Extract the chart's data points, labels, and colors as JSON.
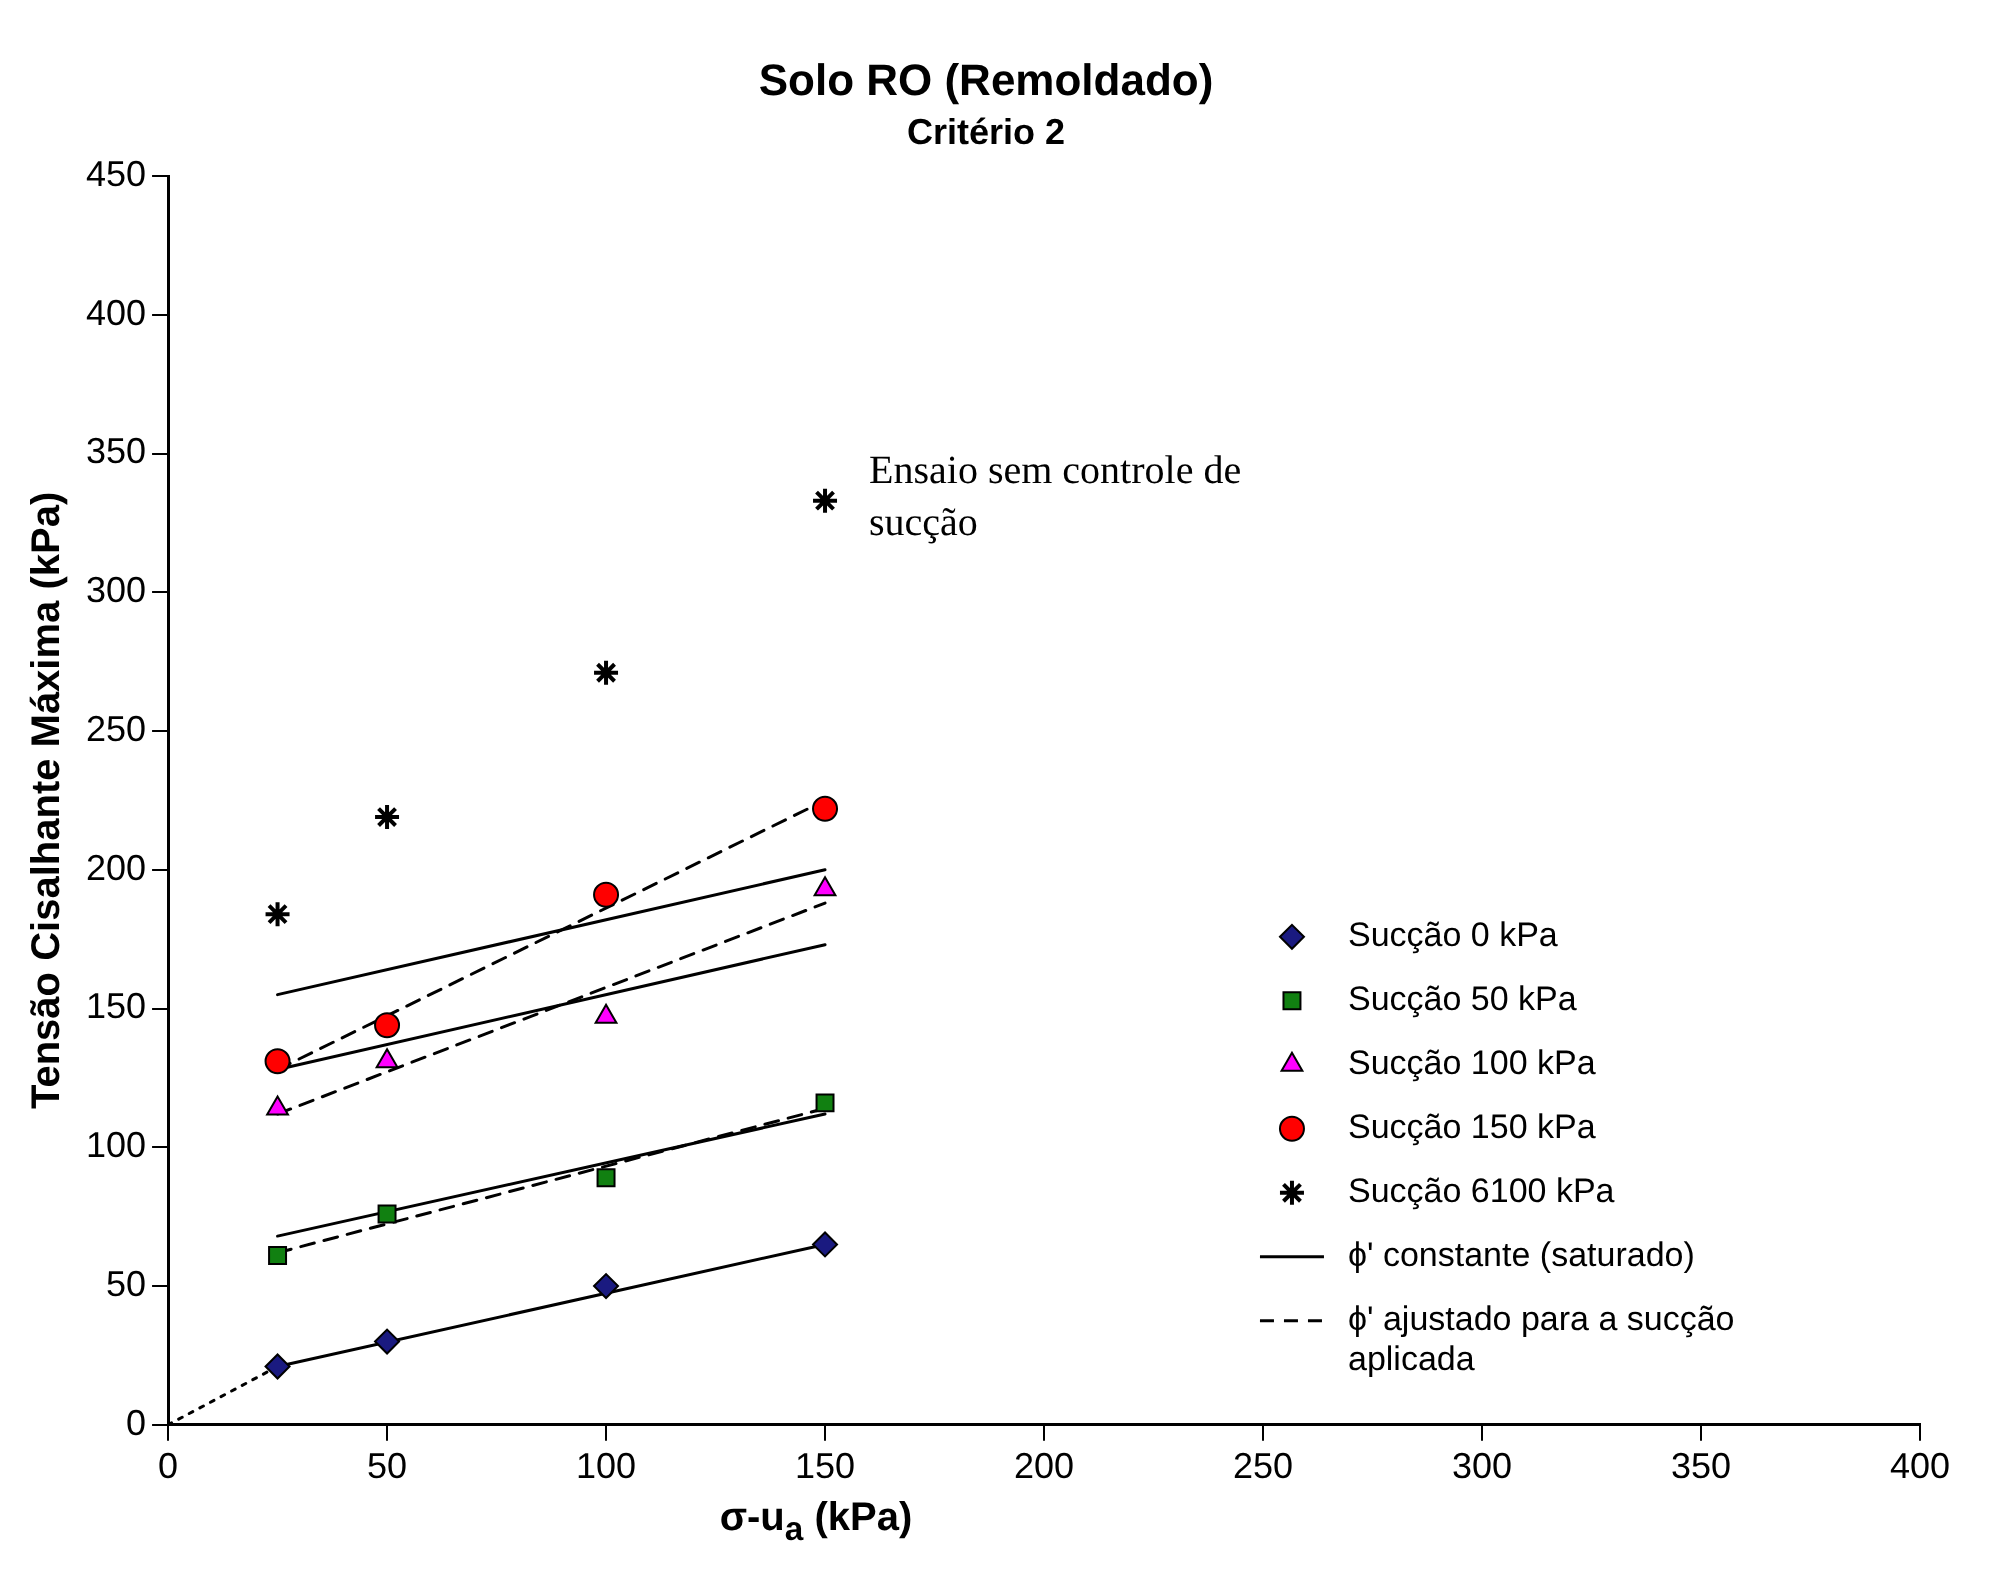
{
  "chart_data": {
    "type": "scatter",
    "title": "Solo RO (Remoldado)",
    "subtitle": "Critério 2",
    "xlabel": "σ-u$_{a}$ (kPa)",
    "ylabel": "Tensão Cisalhante Máxima (kPa)",
    "xlim": [
      0,
      400
    ],
    "xticks": [
      0,
      50,
      100,
      150,
      200,
      250,
      300,
      350,
      400
    ],
    "ylim": [
      0,
      450
    ],
    "yticks": [
      0,
      50,
      100,
      150,
      200,
      250,
      300,
      350,
      400,
      450
    ],
    "grid": false,
    "legend": "bottom right",
    "annotations": [
      {
        "text": "Ensaio sem controle de sucção",
        "x": 150,
        "y": 333
      }
    ],
    "series": [
      {
        "name": "Sucção 0 kPa",
        "color": "#1a1a80",
        "marker": "diamond",
        "x": [
          25,
          50,
          100,
          150
        ],
        "values": [
          21,
          30,
          50,
          65
        ]
      },
      {
        "name": "Sucção 50 kPa",
        "color": "#118011",
        "marker": "square",
        "x": [
          25,
          50,
          100,
          150
        ],
        "values": [
          61,
          76,
          89,
          116
        ]
      },
      {
        "name": "Sucção 100 kPa",
        "color": "#ff00ff",
        "marker": "triangle",
        "x": [
          25,
          50,
          100,
          150
        ],
        "values": [
          114,
          131,
          147,
          193
        ]
      },
      {
        "name": "Sucção 150 kPa",
        "color": "#ff0000",
        "marker": "circle",
        "x": [
          25,
          50,
          100,
          150
        ],
        "values": [
          131,
          144,
          191,
          222
        ]
      },
      {
        "name": "Sucção 6100 kPa",
        "color": "#000000",
        "marker": "cross",
        "x": [
          25,
          50,
          100,
          150
        ],
        "values": [
          184,
          219,
          271,
          333
        ]
      },
      {
        "name": "ϕ' constante (saturado)",
        "type": "line",
        "color": "#000000",
        "marker": "none",
        "line_style": "solid",
        "x": [
          25,
          150
        ],
        "values": [
          21,
          65
        ]
      },
      {
        "type": "line",
        "color": "#000000",
        "marker": "none",
        "line_style": "solid",
        "x": [
          25,
          150
        ],
        "values": [
          68,
          112
        ]
      },
      {
        "type": "line",
        "color": "#000000",
        "marker": "none",
        "line_style": "solid",
        "x": [
          25,
          150
        ],
        "values": [
          128,
          173
        ]
      },
      {
        "type": "line",
        "color": "#000000",
        "marker": "none",
        "line_style": "solid",
        "x": [
          25,
          150
        ],
        "values": [
          155,
          200
        ]
      },
      {
        "name": "ϕ' ajustado para a sucção aplicada",
        "type": "line",
        "color": "#000000",
        "marker": "none",
        "line_style": "dashed",
        "x": [
          25,
          150
        ],
        "values": [
          62,
          114
        ]
      },
      {
        "type": "line",
        "color": "#000000",
        "marker": "none",
        "line_style": "dashed",
        "x": [
          25,
          150
        ],
        "values": [
          112,
          188
        ]
      },
      {
        "type": "line",
        "color": "#000000",
        "marker": "none",
        "line_style": "dashed",
        "x": [
          25,
          150
        ],
        "values": [
          128,
          225
        ]
      },
      {
        "type": "line",
        "color": "#000000",
        "marker": "none",
        "line_style": "dotted",
        "x": [
          0,
          25
        ],
        "values": [
          0,
          21
        ]
      }
    ]
  }
}
